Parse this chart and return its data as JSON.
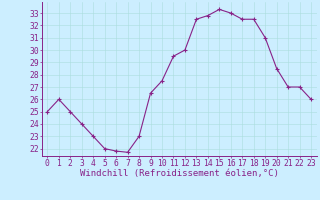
{
  "x": [
    0,
    1,
    2,
    3,
    4,
    5,
    6,
    7,
    8,
    9,
    10,
    11,
    12,
    13,
    14,
    15,
    16,
    17,
    18,
    19,
    20,
    21,
    22,
    23
  ],
  "y": [
    25.0,
    26.0,
    25.0,
    24.0,
    23.0,
    22.0,
    21.8,
    21.7,
    23.0,
    26.5,
    27.5,
    29.5,
    30.0,
    32.5,
    32.8,
    33.3,
    33.0,
    32.5,
    32.5,
    31.0,
    28.5,
    27.0,
    27.0,
    26.0
  ],
  "line_color": "#882288",
  "marker": "+",
  "bg_color": "#cceeff",
  "grid_color": "#aadddd",
  "xlabel": "Windchill (Refroidissement éolien,°C)",
  "ylabel_ticks": [
    22,
    23,
    24,
    25,
    26,
    27,
    28,
    29,
    30,
    31,
    32,
    33
  ],
  "ylim": [
    21.4,
    33.9
  ],
  "xlim": [
    -0.5,
    23.5
  ],
  "xlabel_color": "#882288",
  "tick_color": "#882288",
  "spine_color": "#882288",
  "font_size_xlabel": 6.5,
  "font_size_yticks": 5.8,
  "font_size_xticks": 5.8
}
